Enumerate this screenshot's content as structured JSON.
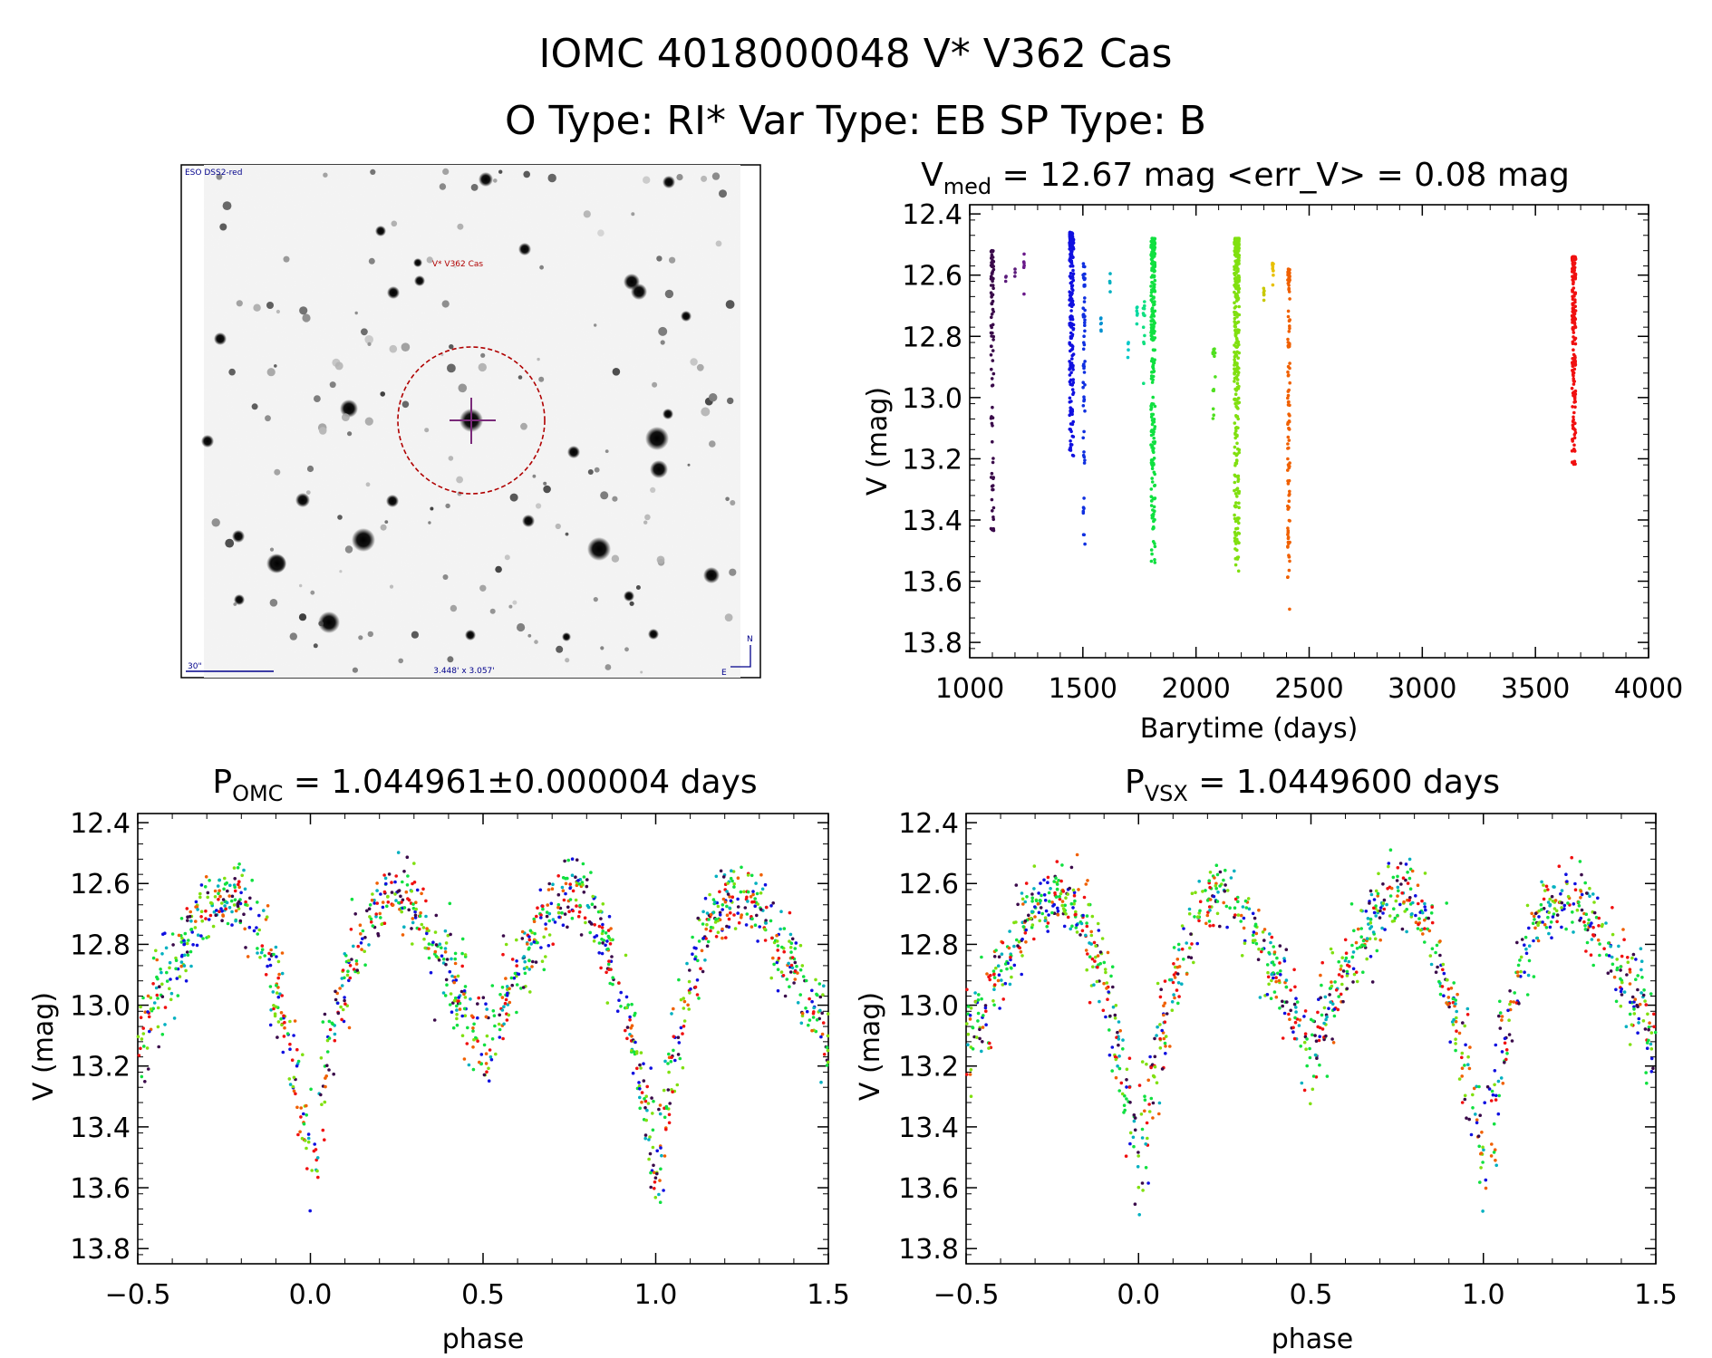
{
  "header": {
    "line1": "IOMC 4018000048   V* V362 Cas",
    "line2": "O Type: RI*  Var Type: EB  SP Type: B"
  },
  "finder_chart": {
    "survey_label": "ESO DSS2-red",
    "target_label": "V* V362 Cas",
    "scale_label": "30\"",
    "fov_label": "3.448' x 3.057'",
    "north_label": "N",
    "east_label": "E",
    "colors": {
      "target": "#b00000",
      "cross": "#7a2a7a",
      "labels": "#00008b"
    }
  },
  "chart_data": [
    {
      "type": "scatter",
      "id": "lightcurve",
      "title_main": "V",
      "title_sub": "med",
      "title_rest": " = 12.67 mag <err_V> = 0.08 mag",
      "xlabel": "Barytime (days)",
      "ylabel": "V (mag)",
      "xlim": [
        1000,
        4000
      ],
      "ylim": [
        13.85,
        12.37
      ],
      "y_inverted": true,
      "xticks": [
        1000,
        1500,
        2000,
        2500,
        3000,
        3500,
        4000
      ],
      "yticks": [
        12.4,
        12.6,
        12.8,
        13.0,
        13.2,
        13.4,
        13.6,
        13.8
      ],
      "ytick_labels": [
        "12.4",
        "12.6",
        "12.8",
        "13.0",
        "13.2",
        "13.4",
        "13.6",
        "13.8"
      ],
      "groups": [
        {
          "x": 1100,
          "xw": 12,
          "ymin": 12.52,
          "ymax": 13.46,
          "n": 90,
          "color": "#3a0a4a"
        },
        {
          "x": 1160,
          "xw": 2,
          "ymin": 12.6,
          "ymax": 12.64,
          "n": 3,
          "color": "#5a1a7a"
        },
        {
          "x": 1200,
          "xw": 2,
          "ymin": 12.58,
          "ymax": 12.62,
          "n": 3,
          "color": "#5a1a7a"
        },
        {
          "x": 1240,
          "xw": 2,
          "ymin": 12.53,
          "ymax": 12.67,
          "n": 6,
          "color": "#6a1a8a"
        },
        {
          "x": 1450,
          "xw": 18,
          "ymin": 12.46,
          "ymax": 13.2,
          "n": 200,
          "color": "#1010e0"
        },
        {
          "x": 1505,
          "xw": 8,
          "ymin": 12.56,
          "ymax": 13.49,
          "n": 60,
          "color": "#1030e0"
        },
        {
          "x": 1580,
          "xw": 3,
          "ymin": 12.74,
          "ymax": 12.86,
          "n": 6,
          "color": "#0090d0"
        },
        {
          "x": 1620,
          "xw": 3,
          "ymin": 12.58,
          "ymax": 12.68,
          "n": 5,
          "color": "#00b0c0"
        },
        {
          "x": 1700,
          "xw": 3,
          "ymin": 12.82,
          "ymax": 12.88,
          "n": 4,
          "color": "#00c8c8"
        },
        {
          "x": 1740,
          "xw": 4,
          "ymin": 12.7,
          "ymax": 12.78,
          "n": 6,
          "color": "#00d8a0"
        },
        {
          "x": 1770,
          "xw": 8,
          "ymin": 12.68,
          "ymax": 12.96,
          "n": 12,
          "color": "#10e080"
        },
        {
          "x": 1810,
          "xw": 18,
          "ymin": 12.48,
          "ymax": 13.54,
          "n": 260,
          "color": "#10e040"
        },
        {
          "x": 2080,
          "xw": 12,
          "ymin": 12.84,
          "ymax": 13.08,
          "n": 14,
          "color": "#50e020"
        },
        {
          "x": 2180,
          "xw": 22,
          "ymin": 12.48,
          "ymax": 13.57,
          "n": 320,
          "color": "#80e010"
        },
        {
          "x": 2300,
          "xw": 4,
          "ymin": 12.64,
          "ymax": 12.7,
          "n": 6,
          "color": "#c8c800"
        },
        {
          "x": 2340,
          "xw": 6,
          "ymin": 12.56,
          "ymax": 12.66,
          "n": 10,
          "color": "#e8c000"
        },
        {
          "x": 2410,
          "xw": 10,
          "ymin": 12.58,
          "ymax": 13.7,
          "n": 110,
          "color": "#f06000"
        },
        {
          "x": 3670,
          "xw": 16,
          "ymin": 12.54,
          "ymax": 13.22,
          "n": 180,
          "color": "#f01010"
        }
      ]
    },
    {
      "type": "scatter",
      "id": "phase_omc",
      "title_main": "P",
      "title_sub": "OMC",
      "title_rest": " = 1.044961±0.000004 days",
      "xlabel": "phase",
      "ylabel": "V (mag)",
      "xlim": [
        -0.5,
        1.5
      ],
      "ylim": [
        13.85,
        12.37
      ],
      "y_inverted": true,
      "xticks": [
        -0.5,
        0.0,
        0.5,
        1.0,
        1.5
      ],
      "xtick_labels": [
        "−0.5",
        "0.0",
        "0.5",
        "1.0",
        "1.5"
      ],
      "yticks": [
        12.4,
        12.6,
        12.8,
        13.0,
        13.2,
        13.4,
        13.6,
        13.8
      ],
      "ytick_labels": [
        "12.4",
        "12.6",
        "12.8",
        "13.0",
        "13.2",
        "13.4",
        "13.6",
        "13.8"
      ],
      "model": {
        "max_mag": 12.6,
        "primary_min": 13.55,
        "secondary_min": 13.15,
        "eclipse_halfwidth": 0.3,
        "shape_power": 1.6
      },
      "n_points": 1300,
      "scatter_mag": 0.05,
      "series_colors": [
        "#10e040",
        "#80e010",
        "#f01010",
        "#1010e0",
        "#00b0c0",
        "#3a0a4a",
        "#f06000"
      ]
    },
    {
      "type": "scatter",
      "id": "phase_vsx",
      "title_main": "P",
      "title_sub": "VSX",
      "title_rest": " = 1.0449600 days",
      "xlabel": "phase",
      "ylabel": "V (mag)",
      "xlim": [
        -0.5,
        1.5
      ],
      "ylim": [
        13.85,
        12.37
      ],
      "y_inverted": true,
      "xticks": [
        -0.5,
        0.0,
        0.5,
        1.0,
        1.5
      ],
      "xtick_labels": [
        "−0.5",
        "0.0",
        "0.5",
        "1.0",
        "1.5"
      ],
      "yticks": [
        12.4,
        12.6,
        12.8,
        13.0,
        13.2,
        13.4,
        13.6,
        13.8
      ],
      "ytick_labels": [
        "12.4",
        "12.6",
        "12.8",
        "13.0",
        "13.2",
        "13.4",
        "13.6",
        "13.8"
      ],
      "model": {
        "max_mag": 12.6,
        "primary_min": 13.55,
        "secondary_min": 13.15,
        "eclipse_halfwidth": 0.3,
        "shape_power": 1.6
      },
      "n_points": 1300,
      "scatter_mag": 0.05,
      "series_colors": [
        "#10e040",
        "#80e010",
        "#f01010",
        "#1010e0",
        "#00b0c0",
        "#3a0a4a",
        "#f06000"
      ]
    }
  ]
}
